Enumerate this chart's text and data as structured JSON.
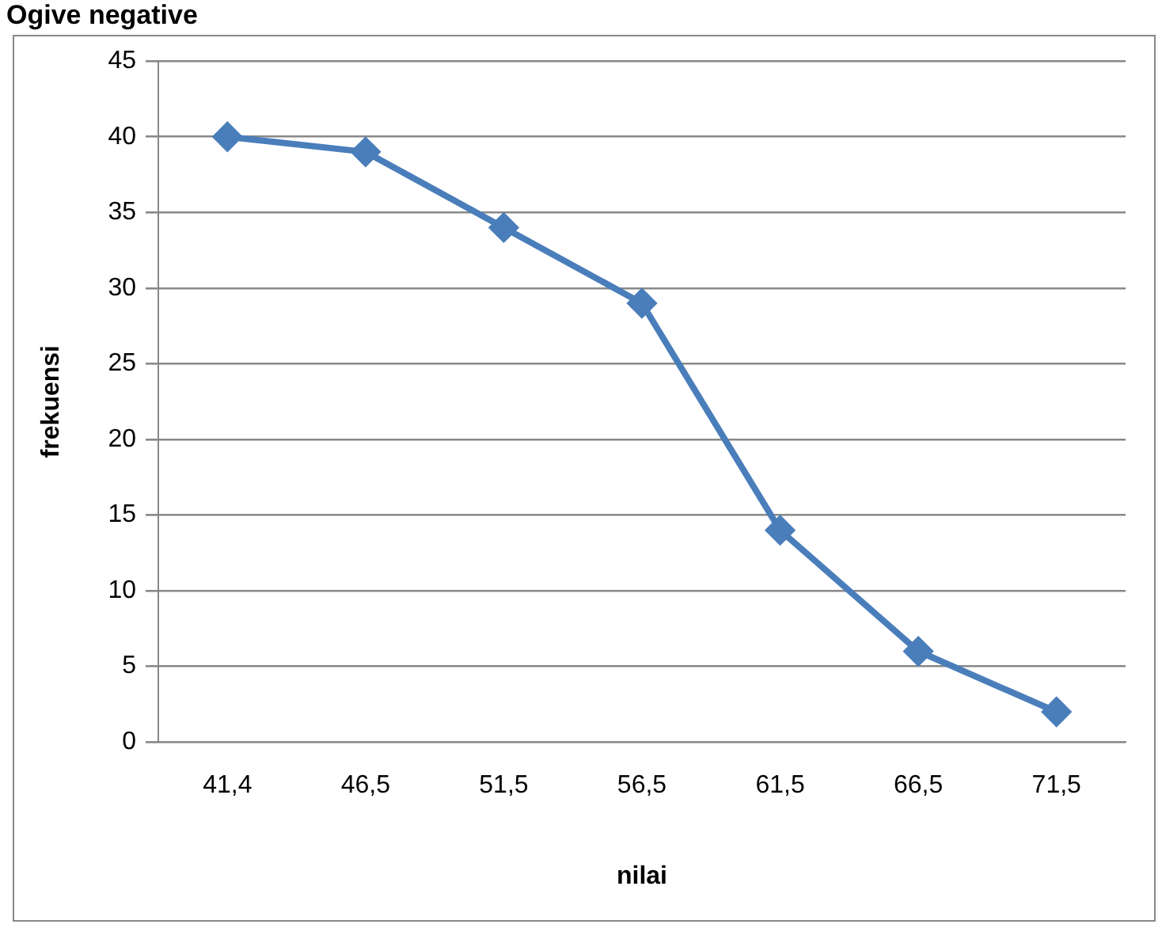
{
  "chart_data": {
    "type": "line",
    "title": "Ogive negative",
    "xlabel": "nilai",
    "ylabel": "frekuensi",
    "categories": [
      "41,4",
      "46,5",
      "51,5",
      "56,5",
      "61,5",
      "66,5",
      "71,5"
    ],
    "series": [
      {
        "color": "#4a7ebb",
        "values": [
          40,
          39,
          34,
          29,
          14,
          6,
          2
        ]
      }
    ],
    "ylim": [
      0,
      45
    ],
    "yticks": [
      0,
      5,
      10,
      15,
      20,
      25,
      30,
      35,
      40,
      45
    ],
    "grid": "y",
    "marker": "diamond",
    "legend": false
  }
}
